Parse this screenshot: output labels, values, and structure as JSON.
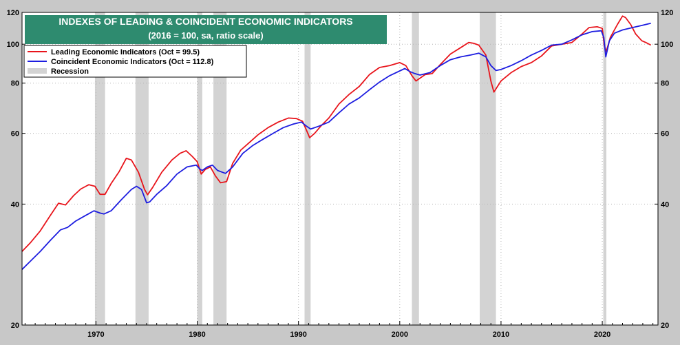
{
  "chart_data": {
    "type": "line",
    "title": "INDEXES OF LEADING & COINCIDENT ECONOMIC INDICATORS",
    "subtitle": "(2016 = 100, sa, ratio scale)",
    "yscale": "log",
    "ylim": [
      20,
      120
    ],
    "xlim": [
      1962.7,
      2025.5
    ],
    "yticks": [
      20,
      40,
      60,
      80,
      100,
      120
    ],
    "ytick_labels": [
      "20",
      "40",
      "60",
      "80",
      "100",
      "120"
    ],
    "xticks": [
      1970,
      1980,
      1990,
      2000,
      2010,
      2020
    ],
    "xtick_labels": [
      "1970",
      "1980",
      "1990",
      "2000",
      "2010",
      "2020"
    ],
    "grid": true,
    "legend_position": "top-left",
    "legend": [
      {
        "label": "Leading Economic Indicators (Oct = 99.5)",
        "color": "#e8141b",
        "kind": "line"
      },
      {
        "label": "Coincident Economic Indicators (Oct = 112.8)",
        "color": "#1d1de0",
        "kind": "line"
      },
      {
        "label": "Recession",
        "color": "#d3d3d3",
        "kind": "box"
      }
    ],
    "recessions": [
      [
        1969.9,
        1970.9
      ],
      [
        1973.9,
        1975.2
      ],
      [
        1980.0,
        1980.5
      ],
      [
        1981.6,
        1982.9
      ],
      [
        1990.6,
        1991.2
      ],
      [
        2001.2,
        2001.9
      ],
      [
        2007.9,
        2009.5
      ],
      [
        2020.1,
        2020.4
      ]
    ],
    "series": [
      {
        "name": "Leading Economic Indicators",
        "color": "#e8141b",
        "x": [
          1962.7,
          1963.5,
          1964.5,
          1965.5,
          1966.3,
          1967.0,
          1967.8,
          1968.5,
          1969.3,
          1969.9,
          1970.4,
          1970.9,
          1971.5,
          1972.3,
          1973.0,
          1973.5,
          1974.2,
          1974.8,
          1975.1,
          1975.6,
          1976.5,
          1977.5,
          1978.3,
          1978.9,
          1979.5,
          1980.0,
          1980.4,
          1980.8,
          1981.3,
          1981.8,
          1982.3,
          1982.9,
          1983.5,
          1984.3,
          1985.0,
          1986.0,
          1987.0,
          1988.0,
          1989.0,
          1989.8,
          1990.4,
          1990.8,
          1991.1,
          1991.6,
          1992.2,
          1993.0,
          1994.0,
          1995.0,
          1996.0,
          1997.0,
          1998.0,
          1999.0,
          2000.0,
          2000.6,
          2001.2,
          2001.6,
          2001.9,
          2002.5,
          2003.2,
          2004.0,
          2005.0,
          2006.0,
          2006.8,
          2007.3,
          2007.8,
          2008.5,
          2009.0,
          2009.3,
          2010.0,
          2011.0,
          2012.0,
          2013.0,
          2014.0,
          2015.0,
          2016.0,
          2017.0,
          2018.0,
          2018.7,
          2019.5,
          2020.0,
          2020.2,
          2020.4,
          2020.8,
          2021.5,
          2022.0,
          2022.3,
          2022.8,
          2023.3,
          2023.9,
          2024.3,
          2024.8
        ],
        "values": [
          30.5,
          32.0,
          34.3,
          37.5,
          40.2,
          39.8,
          42.0,
          43.6,
          44.7,
          44.3,
          42.3,
          42.3,
          45.0,
          48.2,
          52.0,
          51.5,
          48.0,
          43.5,
          42.2,
          44.0,
          48.0,
          51.5,
          53.5,
          54.3,
          52.6,
          51.0,
          47.5,
          48.8,
          49.5,
          47.0,
          45.2,
          45.5,
          50.5,
          54.5,
          56.5,
          59.5,
          62.0,
          64.0,
          65.5,
          65.3,
          64.3,
          61.0,
          58.5,
          60.0,
          62.5,
          65.5,
          71.0,
          75.0,
          78.5,
          84.0,
          87.5,
          88.5,
          90.0,
          88.5,
          83.5,
          81.0,
          82.0,
          84.0,
          84.5,
          89.0,
          94.5,
          98.0,
          101.0,
          100.5,
          99.5,
          94.0,
          81.0,
          76.0,
          81.0,
          85.0,
          88.0,
          90.0,
          93.5,
          99.0,
          100.0,
          101.0,
          106.0,
          110.0,
          110.5,
          109.5,
          99.0,
          96.0,
          104.0,
          112.0,
          117.5,
          116.5,
          112.0,
          106.0,
          102.0,
          101.0,
          99.5
        ]
      },
      {
        "name": "Coincident Economic Indicators",
        "color": "#1d1de0",
        "x": [
          1962.7,
          1963.5,
          1964.5,
          1965.5,
          1966.5,
          1967.2,
          1968.0,
          1969.0,
          1969.8,
          1970.4,
          1970.8,
          1971.5,
          1972.5,
          1973.5,
          1974.0,
          1974.5,
          1975.0,
          1975.3,
          1976.0,
          1977.0,
          1978.0,
          1979.0,
          1979.9,
          1980.3,
          1980.5,
          1981.0,
          1981.5,
          1982.0,
          1982.8,
          1983.5,
          1984.5,
          1985.5,
          1986.5,
          1987.5,
          1988.5,
          1989.5,
          1990.3,
          1990.8,
          1991.2,
          1992.0,
          1993.0,
          1994.0,
          1995.0,
          1996.0,
          1997.0,
          1998.0,
          1999.0,
          2000.5,
          2001.0,
          2001.5,
          2002.0,
          2003.0,
          2004.0,
          2005.0,
          2006.0,
          2007.0,
          2007.8,
          2008.5,
          2009.0,
          2009.5,
          2010.0,
          2011.0,
          2012.0,
          2013.0,
          2014.0,
          2015.0,
          2016.0,
          2017.0,
          2018.0,
          2019.0,
          2019.9,
          2020.15,
          2020.35,
          2020.7,
          2021.2,
          2022.0,
          2023.0,
          2024.0,
          2024.8
        ],
        "values": [
          27.5,
          28.8,
          30.5,
          32.5,
          34.5,
          35.0,
          36.3,
          37.5,
          38.5,
          38.0,
          37.8,
          38.5,
          41.0,
          43.5,
          44.3,
          43.5,
          40.3,
          40.5,
          42.3,
          44.5,
          47.5,
          49.5,
          50.0,
          48.8,
          48.5,
          49.5,
          50.0,
          48.5,
          47.7,
          49.5,
          53.5,
          56.0,
          58.0,
          60.0,
          62.0,
          63.3,
          64.0,
          62.5,
          61.5,
          62.5,
          64.0,
          67.5,
          71.0,
          73.5,
          77.0,
          80.5,
          83.5,
          87.0,
          85.5,
          84.5,
          83.8,
          85.0,
          88.5,
          91.5,
          93.0,
          94.0,
          95.0,
          93.0,
          88.5,
          86.0,
          86.5,
          88.5,
          91.0,
          94.0,
          96.5,
          99.5,
          100.0,
          102.5,
          105.5,
          107.5,
          108.0,
          104.0,
          93.0,
          102.0,
          106.5,
          108.5,
          110.0,
          111.5,
          112.8
        ]
      }
    ]
  }
}
